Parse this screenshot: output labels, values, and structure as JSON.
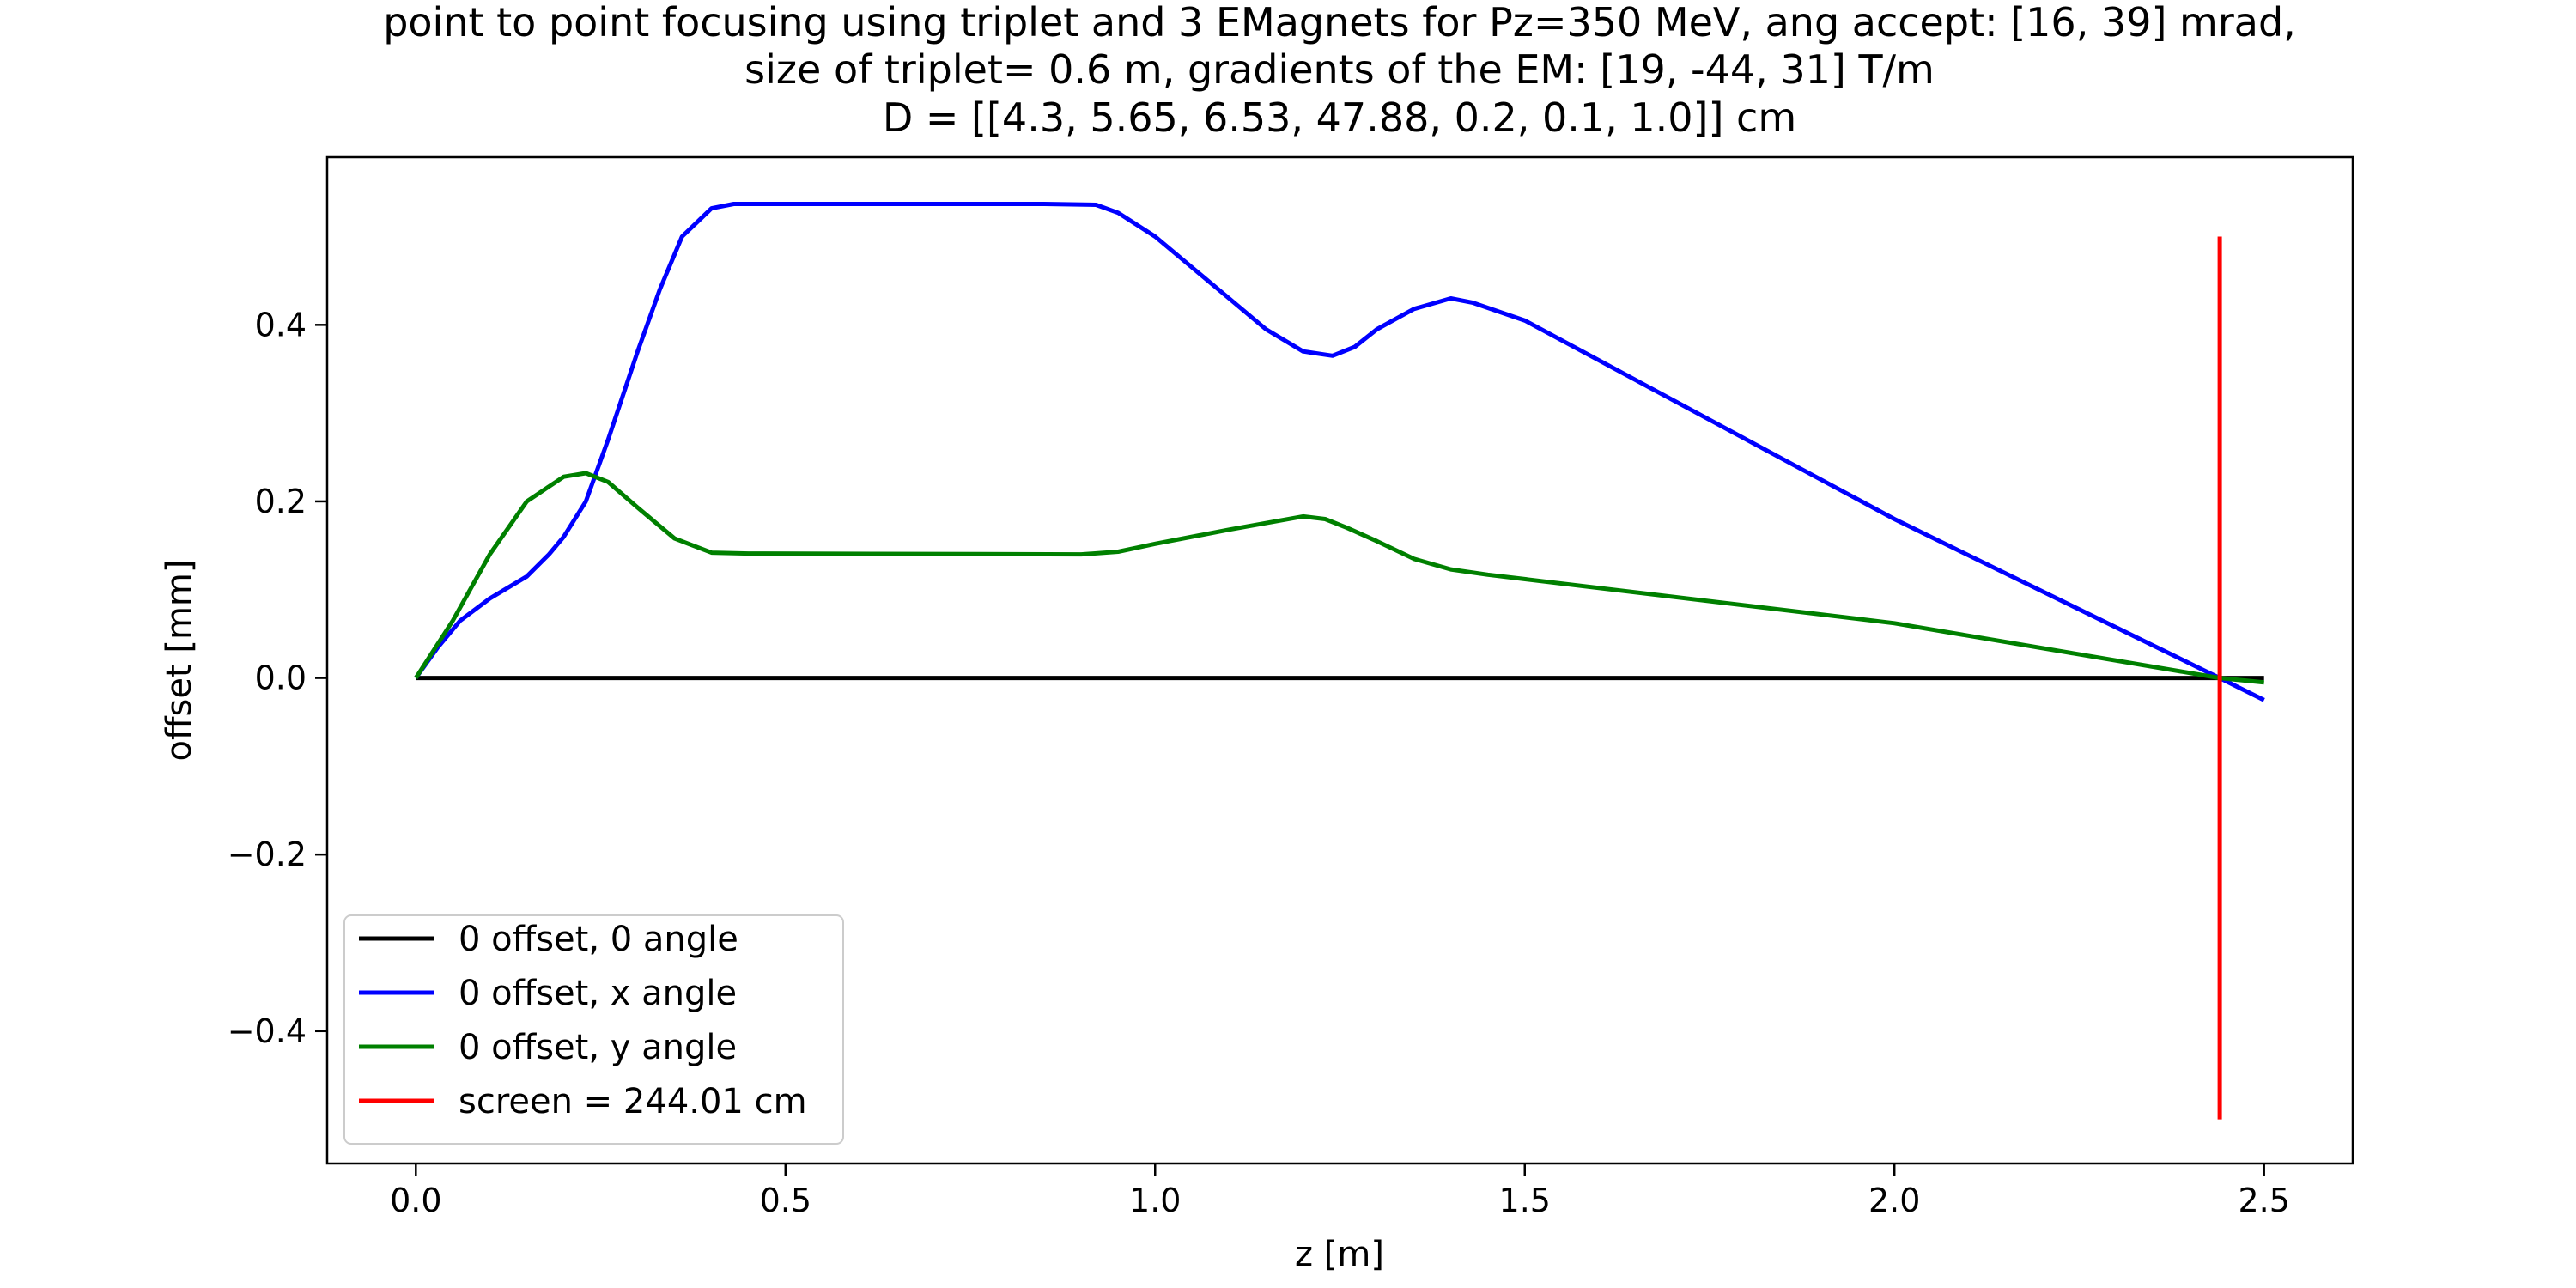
{
  "chart_data": {
    "type": "line",
    "title_lines": [
      "point to point focusing using triplet and 3 EMagnets for Pz=350 MeV, ang accept: [16, 39] mrad,",
      "size of triplet= 0.6 m, gradients of the EM: [19, -44, 31] T/m",
      "D = [[4.3, 5.65, 6.53, 47.88, 0.2, 0.1, 1.0]] cm"
    ],
    "xlabel": "z [m]",
    "ylabel": "offset [mm]",
    "xlim": [
      -0.12,
      2.62
    ],
    "ylim": [
      -0.55,
      0.59
    ],
    "x_ticks": [
      {
        "value": 0.0,
        "label": "0.0"
      },
      {
        "value": 0.5,
        "label": "0.5"
      },
      {
        "value": 1.0,
        "label": "1.0"
      },
      {
        "value": 1.5,
        "label": "1.5"
      },
      {
        "value": 2.0,
        "label": "2.0"
      },
      {
        "value": 2.5,
        "label": "2.5"
      }
    ],
    "y_ticks": [
      {
        "value": -0.4,
        "label": "−0.4"
      },
      {
        "value": -0.2,
        "label": "−0.2"
      },
      {
        "value": 0.0,
        "label": "0.0"
      },
      {
        "value": 0.2,
        "label": "0.2"
      },
      {
        "value": 0.4,
        "label": "0.4"
      }
    ],
    "grid": false,
    "legend_position": "lower-left",
    "series": [
      {
        "name": "0 offset, 0 angle",
        "color": "#000000",
        "x": [
          0.0,
          2.5
        ],
        "y": [
          0.0,
          0.0
        ]
      },
      {
        "name": "0 offset, x angle",
        "color": "#0000ff",
        "x": [
          0.0,
          0.03,
          0.06,
          0.1,
          0.15,
          0.18,
          0.2,
          0.23,
          0.26,
          0.3,
          0.33,
          0.36,
          0.4,
          0.43,
          0.5,
          0.7,
          0.85,
          0.92,
          0.95,
          1.0,
          1.05,
          1.1,
          1.15,
          1.2,
          1.24,
          1.27,
          1.3,
          1.35,
          1.4,
          1.43,
          1.5,
          2.0,
          2.44,
          2.5
        ],
        "y": [
          0.0,
          0.035,
          0.065,
          0.09,
          0.115,
          0.14,
          0.16,
          0.2,
          0.27,
          0.37,
          0.44,
          0.5,
          0.532,
          0.537,
          0.537,
          0.537,
          0.537,
          0.536,
          0.527,
          0.5,
          0.465,
          0.43,
          0.395,
          0.37,
          0.365,
          0.375,
          0.395,
          0.418,
          0.43,
          0.425,
          0.405,
          0.18,
          0.0,
          -0.025
        ]
      },
      {
        "name": "0 offset, y angle",
        "color": "#008000",
        "x": [
          0.0,
          0.05,
          0.1,
          0.15,
          0.2,
          0.23,
          0.26,
          0.3,
          0.35,
          0.4,
          0.45,
          0.9,
          0.95,
          1.0,
          1.1,
          1.2,
          1.23,
          1.26,
          1.3,
          1.35,
          1.4,
          1.45,
          2.0,
          2.44,
          2.5
        ],
        "y": [
          0.0,
          0.065,
          0.14,
          0.2,
          0.228,
          0.232,
          0.222,
          0.193,
          0.158,
          0.142,
          0.141,
          0.14,
          0.143,
          0.152,
          0.168,
          0.183,
          0.18,
          0.17,
          0.155,
          0.135,
          0.123,
          0.117,
          0.062,
          0.0,
          -0.005
        ]
      },
      {
        "name": "screen = 244.01 cm",
        "color": "#ff0000",
        "x": [
          2.4401,
          2.4401
        ],
        "y": [
          -0.5,
          0.5
        ]
      }
    ]
  }
}
